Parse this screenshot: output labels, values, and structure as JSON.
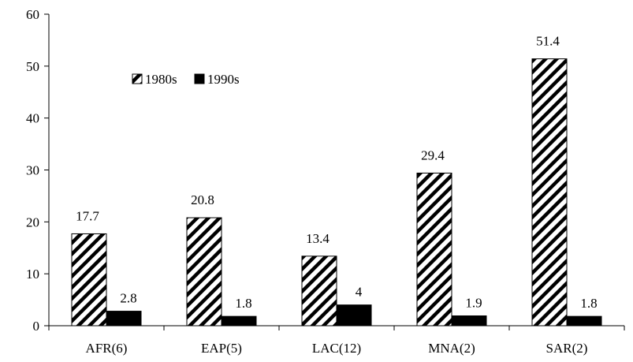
{
  "chart_data": {
    "type": "bar",
    "categories": [
      "AFR(6)",
      "EAP(5)",
      "LAC(12)",
      "MNA(2)",
      "SAR(2)"
    ],
    "series": [
      {
        "name": "1980s",
        "values": [
          17.7,
          20.8,
          13.4,
          29.4,
          51.4
        ],
        "labels": [
          "17.7",
          "20.8",
          "13.4",
          "29.4",
          "51.4"
        ],
        "pattern": "diagonal-hatch"
      },
      {
        "name": "1990s",
        "values": [
          2.8,
          1.8,
          4,
          1.9,
          1.8
        ],
        "labels": [
          "2.8",
          "1.8",
          "4",
          "1.9",
          "1.8"
        ],
        "pattern": "solid",
        "color": "#000000"
      }
    ],
    "ylim": [
      0,
      60
    ],
    "yticks": [
      "0",
      "10",
      "20",
      "30",
      "40",
      "50",
      "60"
    ],
    "grid": false,
    "legend_position": "upper-left-inside",
    "title": "",
    "xlabel": "",
    "ylabel": ""
  }
}
